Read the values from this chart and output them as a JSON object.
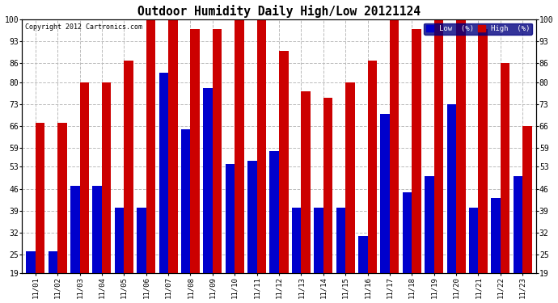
{
  "title": "Outdoor Humidity Daily High/Low 20121124",
  "copyright": "Copyright 2012 Cartronics.com",
  "background_color": "#ffffff",
  "plot_bg_color": "#ffffff",
  "grid_color": "#bbbbbb",
  "bar_color_low": "#0000cc",
  "bar_color_high": "#cc0000",
  "ylim_min": 19,
  "ylim_max": 100,
  "yticks": [
    19,
    25,
    32,
    39,
    46,
    53,
    59,
    66,
    73,
    80,
    86,
    93,
    100
  ],
  "dates": [
    "11/01",
    "11/02",
    "11/03",
    "11/04",
    "11/05",
    "11/06",
    "11/07",
    "11/08",
    "11/09",
    "11/10",
    "11/11",
    "11/12",
    "11/13",
    "11/14",
    "11/15",
    "11/16",
    "11/17",
    "11/18",
    "11/19",
    "11/20",
    "11/21",
    "11/22",
    "11/23"
  ],
  "high_values": [
    67,
    67,
    80,
    80,
    87,
    100,
    100,
    97,
    97,
    100,
    100,
    90,
    77,
    75,
    80,
    87,
    100,
    97,
    100,
    100,
    97,
    86,
    66
  ],
  "low_values": [
    26,
    26,
    47,
    47,
    40,
    40,
    83,
    65,
    78,
    54,
    55,
    58,
    40,
    40,
    40,
    31,
    70,
    45,
    50,
    73,
    40,
    43,
    50
  ]
}
